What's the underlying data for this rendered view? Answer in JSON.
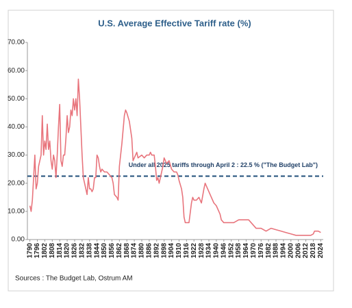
{
  "chart_data": {
    "type": "line",
    "title": "U.S. Average Effective Tariff rate (%)",
    "source": "Sources : The Budget Lab, Ostrum AM",
    "x": [
      1790,
      1791,
      1792,
      1793,
      1794,
      1795,
      1796,
      1797,
      1799,
      1800,
      1801,
      1802,
      1803,
      1804,
      1805,
      1806,
      1807,
      1808,
      1809,
      1810,
      1811,
      1812,
      1813,
      1814,
      1815,
      1816,
      1817,
      1818,
      1819,
      1820,
      1821,
      1822,
      1823,
      1824,
      1825,
      1826,
      1827,
      1828,
      1829,
      1830,
      1831,
      1832,
      1833,
      1834,
      1835,
      1836,
      1837,
      1838,
      1839,
      1840,
      1841,
      1842,
      1843,
      1844,
      1845,
      1846,
      1847,
      1848,
      1850,
      1852,
      1854,
      1856,
      1857,
      1858,
      1860,
      1861,
      1862,
      1864,
      1866,
      1867,
      1868,
      1870,
      1872,
      1873,
      1875,
      1876,
      1877,
      1880,
      1882,
      1884,
      1886,
      1887,
      1888,
      1890,
      1891,
      1892,
      1893,
      1894,
      1895,
      1896,
      1897,
      1898,
      1899,
      1900,
      1902,
      1904,
      1906,
      1908,
      1909,
      1910,
      1912,
      1913,
      1914,
      1915,
      1917,
      1918,
      1920,
      1921,
      1922,
      1924,
      1926,
      1928,
      1930,
      1931,
      1932,
      1934,
      1936,
      1938,
      1940,
      1942,
      1943,
      1944,
      1946,
      1948,
      1950,
      1952,
      1954,
      1958,
      1962,
      1966,
      1968,
      1970,
      1972,
      1974,
      1976,
      1980,
      1984,
      1988,
      1992,
      1996,
      2000,
      2004,
      2008,
      2012,
      2016,
      2018,
      2019,
      2020,
      2022,
      2024
    ],
    "series": [
      {
        "name": "U.S. Average Effective Tariff rate",
        "color": "#e8747c",
        "values": [
          12,
          10,
          14,
          22,
          30,
          18,
          20,
          26,
          30,
          44,
          30,
          35,
          32,
          41,
          32,
          35,
          28,
          25,
          30,
          28,
          22,
          30,
          40,
          48,
          28,
          26,
          30,
          30,
          36,
          44,
          38,
          40,
          46,
          44,
          50,
          46,
          50,
          44,
          57,
          50,
          40,
          30,
          22,
          20,
          18,
          16,
          22,
          18,
          18,
          17,
          18,
          22,
          22,
          30,
          29,
          26,
          24,
          25,
          24,
          24,
          23,
          22,
          20,
          16,
          15,
          14,
          26,
          34,
          44,
          46,
          45,
          42,
          36,
          28,
          30,
          31,
          29,
          30,
          29,
          30,
          30,
          31,
          30,
          30,
          26,
          21,
          22,
          20,
          22,
          24,
          26,
          29,
          28,
          27,
          28,
          25,
          24,
          24,
          23,
          21,
          18,
          15,
          8,
          6,
          6,
          6,
          13,
          15,
          14,
          14,
          15,
          13,
          18,
          20,
          19,
          17,
          15,
          13,
          12,
          10,
          9,
          7,
          6,
          6,
          6,
          6,
          6,
          7,
          7,
          7,
          6,
          5,
          4,
          4,
          4,
          3,
          4,
          3.5,
          3,
          2.5,
          2,
          1.5,
          1.5,
          1.5,
          1.5,
          2,
          3,
          3,
          3,
          2.5
        ]
      }
    ],
    "reference_line": {
      "value": 22.5,
      "label": "Under all 2025 tariffs through April 2 : 22.5 % (\"The Budget Lab\")",
      "color": "#1f4e79"
    },
    "xlim": [
      1788,
      2026
    ],
    "xticks": [
      1790,
      1796,
      1802,
      1808,
      1814,
      1820,
      1826,
      1832,
      1838,
      1844,
      1850,
      1856,
      1862,
      1868,
      1874,
      1880,
      1886,
      1892,
      1898,
      1904,
      1910,
      1916,
      1922,
      1928,
      1934,
      1940,
      1946,
      1952,
      1958,
      1964,
      1970,
      1976,
      1982,
      1988,
      1994,
      2000,
      2006,
      2012,
      2018,
      2024
    ],
    "ylim": [
      0,
      70
    ],
    "yticks": [
      {
        "value": 0,
        "label": "0.00"
      },
      {
        "value": 10,
        "label": "10.00"
      },
      {
        "value": 20,
        "label": "20.00"
      },
      {
        "value": 30,
        "label": "30.00"
      },
      {
        "value": 40,
        "label": "40.00"
      },
      {
        "value": 50,
        "label": "50.00"
      },
      {
        "value": 60,
        "label": "60.00"
      },
      {
        "value": 70,
        "label": "70.00"
      }
    ]
  }
}
